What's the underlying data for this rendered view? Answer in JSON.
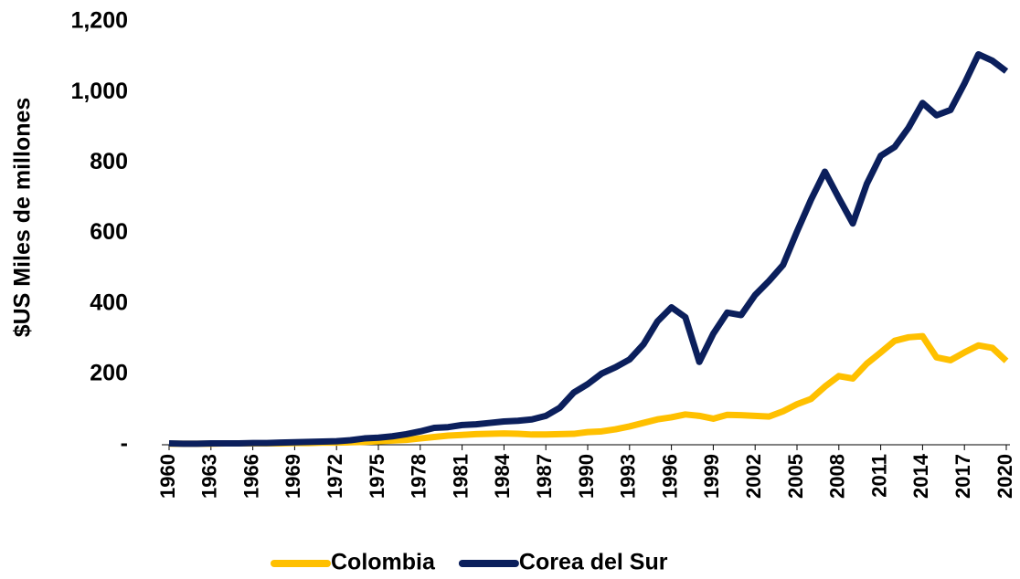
{
  "chart_data": {
    "type": "line",
    "y_label": "$US Miles de millones",
    "x": [
      1960,
      1961,
      1962,
      1963,
      1964,
      1965,
      1966,
      1967,
      1968,
      1969,
      1970,
      1971,
      1972,
      1973,
      1974,
      1975,
      1976,
      1977,
      1978,
      1979,
      1980,
      1981,
      1982,
      1983,
      1984,
      1985,
      1986,
      1987,
      1988,
      1989,
      1990,
      1991,
      1992,
      1993,
      1994,
      1995,
      1996,
      1997,
      1998,
      1999,
      2000,
      2001,
      2002,
      2003,
      2004,
      2005,
      2006,
      2007,
      2008,
      2009,
      2010,
      2011,
      2012,
      2013,
      2014,
      2015,
      2016,
      2017,
      2018,
      2019,
      2020
    ],
    "series": [
      {
        "name": "Colombia",
        "color": "#FFC000",
        "values": [
          3,
          3,
          3,
          3,
          4,
          4,
          4,
          4,
          4,
          5,
          5,
          6,
          6,
          7,
          8,
          10,
          12,
          14,
          18,
          22,
          26,
          28,
          30,
          31,
          32,
          31,
          29,
          29,
          30,
          31,
          36,
          38,
          44,
          52,
          62,
          72,
          78,
          86,
          82,
          74,
          85,
          84,
          82,
          80,
          95,
          115,
          130,
          165,
          195,
          188,
          230,
          262,
          295,
          305,
          308,
          248,
          240,
          262,
          282,
          275,
          238
        ]
      },
      {
        "name": "Corea del Sur",
        "color": "#0B1F5C",
        "values": [
          4,
          3,
          3,
          4,
          4,
          4,
          5,
          5,
          6,
          7,
          8,
          9,
          10,
          13,
          18,
          20,
          24,
          30,
          38,
          48,
          50,
          56,
          58,
          62,
          66,
          68,
          72,
          82,
          105,
          148,
          172,
          202,
          220,
          242,
          285,
          350,
          390,
          362,
          235,
          315,
          375,
          368,
          425,
          465,
          510,
          605,
          695,
          775,
          700,
          628,
          740,
          820,
          845,
          900,
          970,
          935,
          950,
          1025,
          1108,
          1090,
          1060
        ]
      }
    ],
    "xlim": [
      1960,
      2020
    ],
    "xticks": [
      1960,
      1963,
      1966,
      1969,
      1972,
      1975,
      1978,
      1981,
      1984,
      1987,
      1990,
      1993,
      1996,
      1999,
      2002,
      2005,
      2008,
      2011,
      2014,
      2017,
      2020
    ],
    "ylim": [
      0,
      1200
    ],
    "yticks": [
      {
        "value": 0,
        "label": "-"
      },
      200,
      400,
      600,
      800,
      {
        "value": 1000,
        "label": "1,000"
      },
      {
        "value": 1200,
        "label": "1,200"
      }
    ],
    "legend": "bottom"
  }
}
